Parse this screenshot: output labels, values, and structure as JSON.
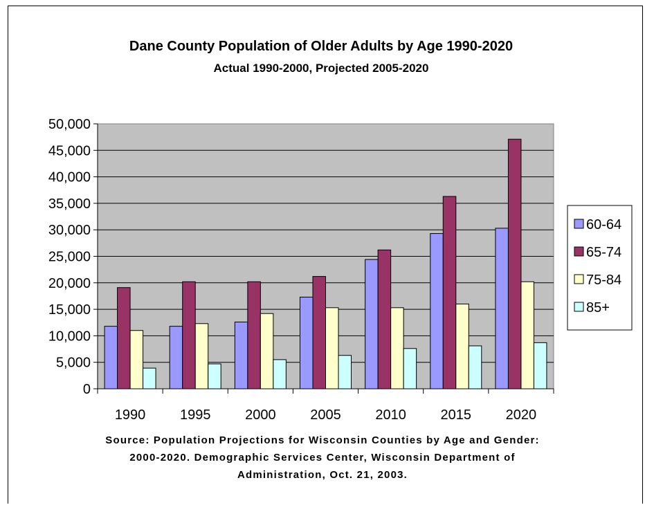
{
  "chart_data": {
    "type": "bar",
    "title": "Dane County Population of Older Adults by Age 1990-2020",
    "subtitle": "Actual 1990-2000, Projected 2005-2020",
    "categories": [
      "1990",
      "1995",
      "2000",
      "2005",
      "2010",
      "2015",
      "2020"
    ],
    "series": [
      {
        "name": "60-64",
        "color": "#9999ff",
        "values": [
          11800,
          11800,
          12600,
          17300,
          24400,
          29300,
          30300
        ]
      },
      {
        "name": "65-74",
        "color": "#993366",
        "values": [
          19100,
          20200,
          20200,
          21200,
          26200,
          36300,
          47100
        ]
      },
      {
        "name": "75-84",
        "color": "#ffffcc",
        "values": [
          11000,
          12300,
          14200,
          15300,
          15300,
          16000,
          20200
        ]
      },
      {
        "name": "85+",
        "color": "#ccffff",
        "values": [
          3900,
          4700,
          5500,
          6300,
          7600,
          8100,
          8700
        ]
      }
    ],
    "yticks": [
      "0",
      "5,000",
      "10,000",
      "15,000",
      "20,000",
      "25,000",
      "30,000",
      "35,000",
      "40,000",
      "45,000",
      "50,000"
    ],
    "ylim": [
      0,
      50000
    ],
    "xlabel": "",
    "ylabel": "",
    "grid": true,
    "plot_background": "#c0c0c0",
    "legend_position": "right"
  },
  "source_lines": [
    "Source: Population Projections for Wisconsin Counties by Age and Gender:",
    "2000-2020.  Demographic Services Center, Wisconsin Department of",
    "Administration, Oct. 21, 2003."
  ]
}
